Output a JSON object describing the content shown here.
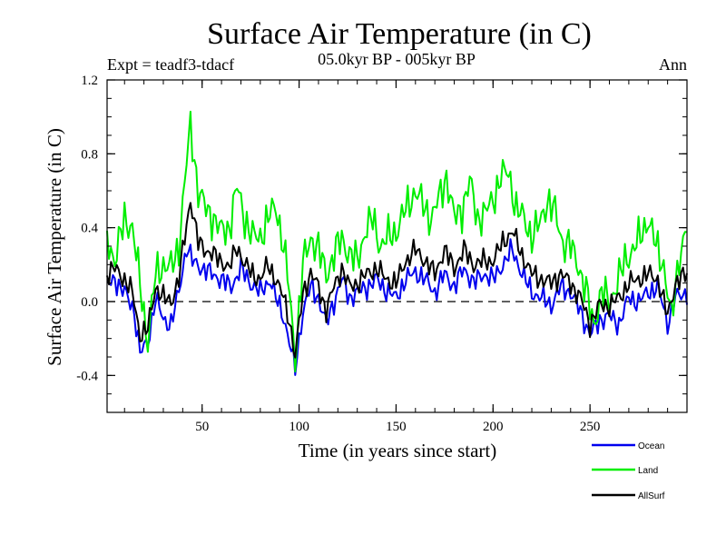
{
  "chart_data": {
    "type": "line",
    "title": "Surface Air Temperature (in C)",
    "subtitle": "05.0kyr BP - 005kyr BP",
    "experiment_label": "Expt = teadf3-tdacf",
    "season_label": "Ann",
    "xlabel": "Time (in years since start)",
    "ylabel": "Surface Air Temperature (in C)",
    "xlim": [
      1,
      300
    ],
    "ylim": [
      -0.6,
      1.2
    ],
    "x_ticks": [
      50,
      100,
      150,
      200,
      250
    ],
    "y_ticks": [
      -0.4,
      0.0,
      0.4,
      0.8,
      1.2
    ],
    "y_tick_labels": [
      "-0.4",
      "0.0",
      "0.4",
      "0.8",
      "1.2"
    ],
    "reference_line": 0.0,
    "legend_position": "bottom-right",
    "series": [
      {
        "name": "Ocean",
        "color": "#0000ee",
        "anchors": [
          [
            1,
            0.08
          ],
          [
            5,
            0.12
          ],
          [
            10,
            0.05
          ],
          [
            15,
            -0.05
          ],
          [
            18,
            -0.28
          ],
          [
            22,
            -0.22
          ],
          [
            26,
            0.02
          ],
          [
            30,
            -0.1
          ],
          [
            34,
            -0.12
          ],
          [
            38,
            0.05
          ],
          [
            42,
            0.3
          ],
          [
            45,
            0.22
          ],
          [
            50,
            0.18
          ],
          [
            55,
            0.15
          ],
          [
            60,
            0.12
          ],
          [
            65,
            0.08
          ],
          [
            70,
            0.18
          ],
          [
            75,
            0.1
          ],
          [
            80,
            0.05
          ],
          [
            85,
            0.12
          ],
          [
            88,
            0.02
          ],
          [
            92,
            -0.08
          ],
          [
            95,
            -0.22
          ],
          [
            98,
            -0.37
          ],
          [
            102,
            -0.05
          ],
          [
            106,
            0.08
          ],
          [
            110,
            0.02
          ],
          [
            114,
            -0.12
          ],
          [
            118,
            0.0
          ],
          [
            122,
            0.12
          ],
          [
            126,
            0.02
          ],
          [
            130,
            0.05
          ],
          [
            135,
            0.08
          ],
          [
            140,
            0.12
          ],
          [
            145,
            0.06
          ],
          [
            150,
            0.02
          ],
          [
            155,
            0.12
          ],
          [
            160,
            0.16
          ],
          [
            165,
            0.12
          ],
          [
            170,
            0.05
          ],
          [
            175,
            0.15
          ],
          [
            180,
            0.08
          ],
          [
            185,
            0.18
          ],
          [
            190,
            0.1
          ],
          [
            195,
            0.15
          ],
          [
            200,
            0.12
          ],
          [
            205,
            0.2
          ],
          [
            210,
            0.28
          ],
          [
            215,
            0.15
          ],
          [
            220,
            0.05
          ],
          [
            225,
            0.02
          ],
          [
            230,
            -0.02
          ],
          [
            235,
            0.08
          ],
          [
            240,
            0.05
          ],
          [
            245,
            -0.05
          ],
          [
            250,
            -0.18
          ],
          [
            255,
            -0.1
          ],
          [
            260,
            -0.08
          ],
          [
            265,
            -0.12
          ],
          [
            270,
            0.02
          ],
          [
            275,
            0.0
          ],
          [
            280,
            0.05
          ],
          [
            285,
            0.08
          ],
          [
            290,
            -0.12
          ],
          [
            294,
            0.02
          ],
          [
            300,
            0.05
          ]
        ]
      },
      {
        "name": "Land",
        "color": "#00ee00",
        "anchors": [
          [
            1,
            0.35
          ],
          [
            5,
            0.22
          ],
          [
            10,
            0.45
          ],
          [
            14,
            0.4
          ],
          [
            18,
            0.1
          ],
          [
            22,
            -0.22
          ],
          [
            26,
            0.15
          ],
          [
            30,
            0.2
          ],
          [
            34,
            0.18
          ],
          [
            38,
            0.3
          ],
          [
            42,
            0.75
          ],
          [
            44,
            0.95
          ],
          [
            48,
            0.6
          ],
          [
            52,
            0.5
          ],
          [
            56,
            0.45
          ],
          [
            60,
            0.38
          ],
          [
            64,
            0.4
          ],
          [
            68,
            0.62
          ],
          [
            72,
            0.45
          ],
          [
            76,
            0.35
          ],
          [
            80,
            0.35
          ],
          [
            84,
            0.45
          ],
          [
            88,
            0.52
          ],
          [
            92,
            0.3
          ],
          [
            95,
            0.05
          ],
          [
            98,
            -0.3
          ],
          [
            102,
            0.2
          ],
          [
            106,
            0.35
          ],
          [
            110,
            0.28
          ],
          [
            114,
            0.15
          ],
          [
            118,
            0.25
          ],
          [
            122,
            0.35
          ],
          [
            126,
            0.25
          ],
          [
            130,
            0.22
          ],
          [
            134,
            0.38
          ],
          [
            138,
            0.45
          ],
          [
            142,
            0.3
          ],
          [
            146,
            0.35
          ],
          [
            150,
            0.38
          ],
          [
            155,
            0.5
          ],
          [
            160,
            0.6
          ],
          [
            164,
            0.52
          ],
          [
            168,
            0.45
          ],
          [
            172,
            0.55
          ],
          [
            176,
            0.68
          ],
          [
            180,
            0.45
          ],
          [
            184,
            0.5
          ],
          [
            188,
            0.65
          ],
          [
            192,
            0.45
          ],
          [
            196,
            0.48
          ],
          [
            200,
            0.55
          ],
          [
            204,
            0.68
          ],
          [
            208,
            0.7
          ],
          [
            212,
            0.5
          ],
          [
            216,
            0.45
          ],
          [
            220,
            0.35
          ],
          [
            224,
            0.42
          ],
          [
            228,
            0.55
          ],
          [
            232,
            0.48
          ],
          [
            236,
            0.32
          ],
          [
            240,
            0.3
          ],
          [
            244,
            0.2
          ],
          [
            248,
            0.05
          ],
          [
            252,
            -0.12
          ],
          [
            256,
            0.05
          ],
          [
            260,
            0.0
          ],
          [
            264,
            0.1
          ],
          [
            268,
            0.22
          ],
          [
            272,
            0.28
          ],
          [
            276,
            0.35
          ],
          [
            280,
            0.45
          ],
          [
            284,
            0.3
          ],
          [
            288,
            0.2
          ],
          [
            292,
            -0.1
          ],
          [
            296,
            0.25
          ],
          [
            300,
            0.4
          ]
        ]
      },
      {
        "name": "AllSurf",
        "color": "#000000",
        "anchors": [
          [
            1,
            0.15
          ],
          [
            5,
            0.18
          ],
          [
            10,
            0.12
          ],
          [
            14,
            0.05
          ],
          [
            18,
            -0.18
          ],
          [
            22,
            -0.15
          ],
          [
            26,
            0.08
          ],
          [
            30,
            0.02
          ],
          [
            34,
            0.0
          ],
          [
            38,
            0.12
          ],
          [
            42,
            0.42
          ],
          [
            44,
            0.55
          ],
          [
            48,
            0.32
          ],
          [
            52,
            0.28
          ],
          [
            56,
            0.25
          ],
          [
            60,
            0.22
          ],
          [
            64,
            0.18
          ],
          [
            68,
            0.3
          ],
          [
            72,
            0.2
          ],
          [
            76,
            0.15
          ],
          [
            80,
            0.12
          ],
          [
            84,
            0.2
          ],
          [
            88,
            0.12
          ],
          [
            92,
            0.02
          ],
          [
            95,
            -0.1
          ],
          [
            98,
            -0.3
          ],
          [
            102,
            0.05
          ],
          [
            106,
            0.15
          ],
          [
            110,
            0.08
          ],
          [
            114,
            -0.05
          ],
          [
            118,
            0.08
          ],
          [
            122,
            0.18
          ],
          [
            126,
            0.08
          ],
          [
            130,
            0.1
          ],
          [
            135,
            0.15
          ],
          [
            140,
            0.18
          ],
          [
            145,
            0.12
          ],
          [
            150,
            0.1
          ],
          [
            155,
            0.22
          ],
          [
            160,
            0.28
          ],
          [
            165,
            0.22
          ],
          [
            170,
            0.15
          ],
          [
            175,
            0.28
          ],
          [
            180,
            0.18
          ],
          [
            185,
            0.28
          ],
          [
            190,
            0.2
          ],
          [
            195,
            0.22
          ],
          [
            200,
            0.22
          ],
          [
            205,
            0.32
          ],
          [
            210,
            0.38
          ],
          [
            215,
            0.25
          ],
          [
            220,
            0.15
          ],
          [
            225,
            0.12
          ],
          [
            230,
            0.1
          ],
          [
            235,
            0.15
          ],
          [
            240,
            0.1
          ],
          [
            245,
            0.02
          ],
          [
            250,
            -0.12
          ],
          [
            255,
            -0.02
          ],
          [
            260,
            -0.02
          ],
          [
            265,
            0.02
          ],
          [
            270,
            0.1
          ],
          [
            275,
            0.12
          ],
          [
            280,
            0.15
          ],
          [
            285,
            0.12
          ],
          [
            290,
            -0.08
          ],
          [
            294,
            0.1
          ],
          [
            300,
            0.15
          ]
        ]
      }
    ]
  }
}
